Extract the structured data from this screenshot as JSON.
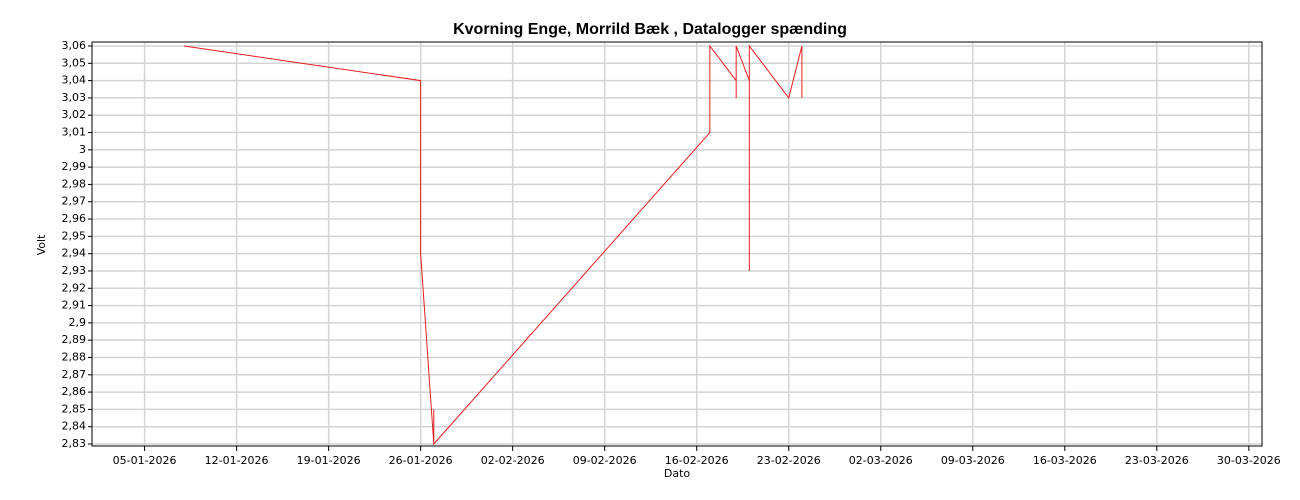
{
  "chart_data": {
    "type": "line",
    "title": "Kvorning Enge, Morrild Bæk , Datalogger spænding",
    "x_label": "Dato",
    "y_label": "Volt",
    "series": [
      {
        "name": "Volt",
        "color": "#e32020",
        "x": [
          "08-01-2026",
          "26-01-2026",
          "26-01-2026",
          "27-01-2026",
          "27-01-2026",
          "27-01-2026",
          "17-02-2026",
          "17-02-2026",
          "19-02-2026",
          "19-02-2026",
          "19-02-2026",
          "19-02-2026",
          "20-02-2026",
          "20-02-2026",
          "20-02-2026",
          "23-02-2026",
          "24-02-2026",
          "24-02-2026"
        ],
        "values": [
          3.06,
          3.04,
          2.94,
          2.83,
          2.85,
          2.83,
          3.01,
          3.06,
          3.04,
          3.06,
          3.03,
          3.06,
          3.04,
          2.93,
          3.06,
          3.03,
          3.06,
          3.03
        ]
      }
    ],
    "xlim": [
      "01-01-2026",
      "31-03-2026"
    ],
    "xticks": [
      "05-01-2026",
      "12-01-2026",
      "19-01-2026",
      "26-01-2026",
      "02-02-2026",
      "09-02-2026",
      "16-02-2026",
      "23-02-2026",
      "02-03-2026",
      "09-03-2026",
      "16-03-2026",
      "23-03-2026",
      "30-03-2026"
    ],
    "ylim": [
      2.83,
      3.06
    ],
    "yticks": [
      {
        "value": 2.83,
        "label": "2,83"
      },
      {
        "value": 2.84,
        "label": "2,84"
      },
      {
        "value": 2.85,
        "label": "2,85"
      },
      {
        "value": 2.86,
        "label": "2,86"
      },
      {
        "value": 2.87,
        "label": "2,87"
      },
      {
        "value": 2.88,
        "label": "2,88"
      },
      {
        "value": 2.89,
        "label": "2,89"
      },
      {
        "value": 2.9,
        "label": "2,9"
      },
      {
        "value": 2.91,
        "label": "2,91"
      },
      {
        "value": 2.92,
        "label": "2,92"
      },
      {
        "value": 2.93,
        "label": "2,93"
      },
      {
        "value": 2.94,
        "label": "2,94"
      },
      {
        "value": 2.95,
        "label": "2,95"
      },
      {
        "value": 2.96,
        "label": "2,96"
      },
      {
        "value": 2.97,
        "label": "2,97"
      },
      {
        "value": 2.98,
        "label": "2,98"
      },
      {
        "value": 2.99,
        "label": "2,99"
      },
      3,
      {
        "value": 3.01,
        "label": "3,01"
      },
      {
        "value": 3.02,
        "label": "3,02"
      },
      {
        "value": 3.03,
        "label": "3,03"
      },
      {
        "value": 3.04,
        "label": "3,04"
      },
      {
        "value": 3.05,
        "label": "3,05"
      },
      {
        "value": 3.06,
        "label": "3,06"
      }
    ],
    "grid": true
  }
}
